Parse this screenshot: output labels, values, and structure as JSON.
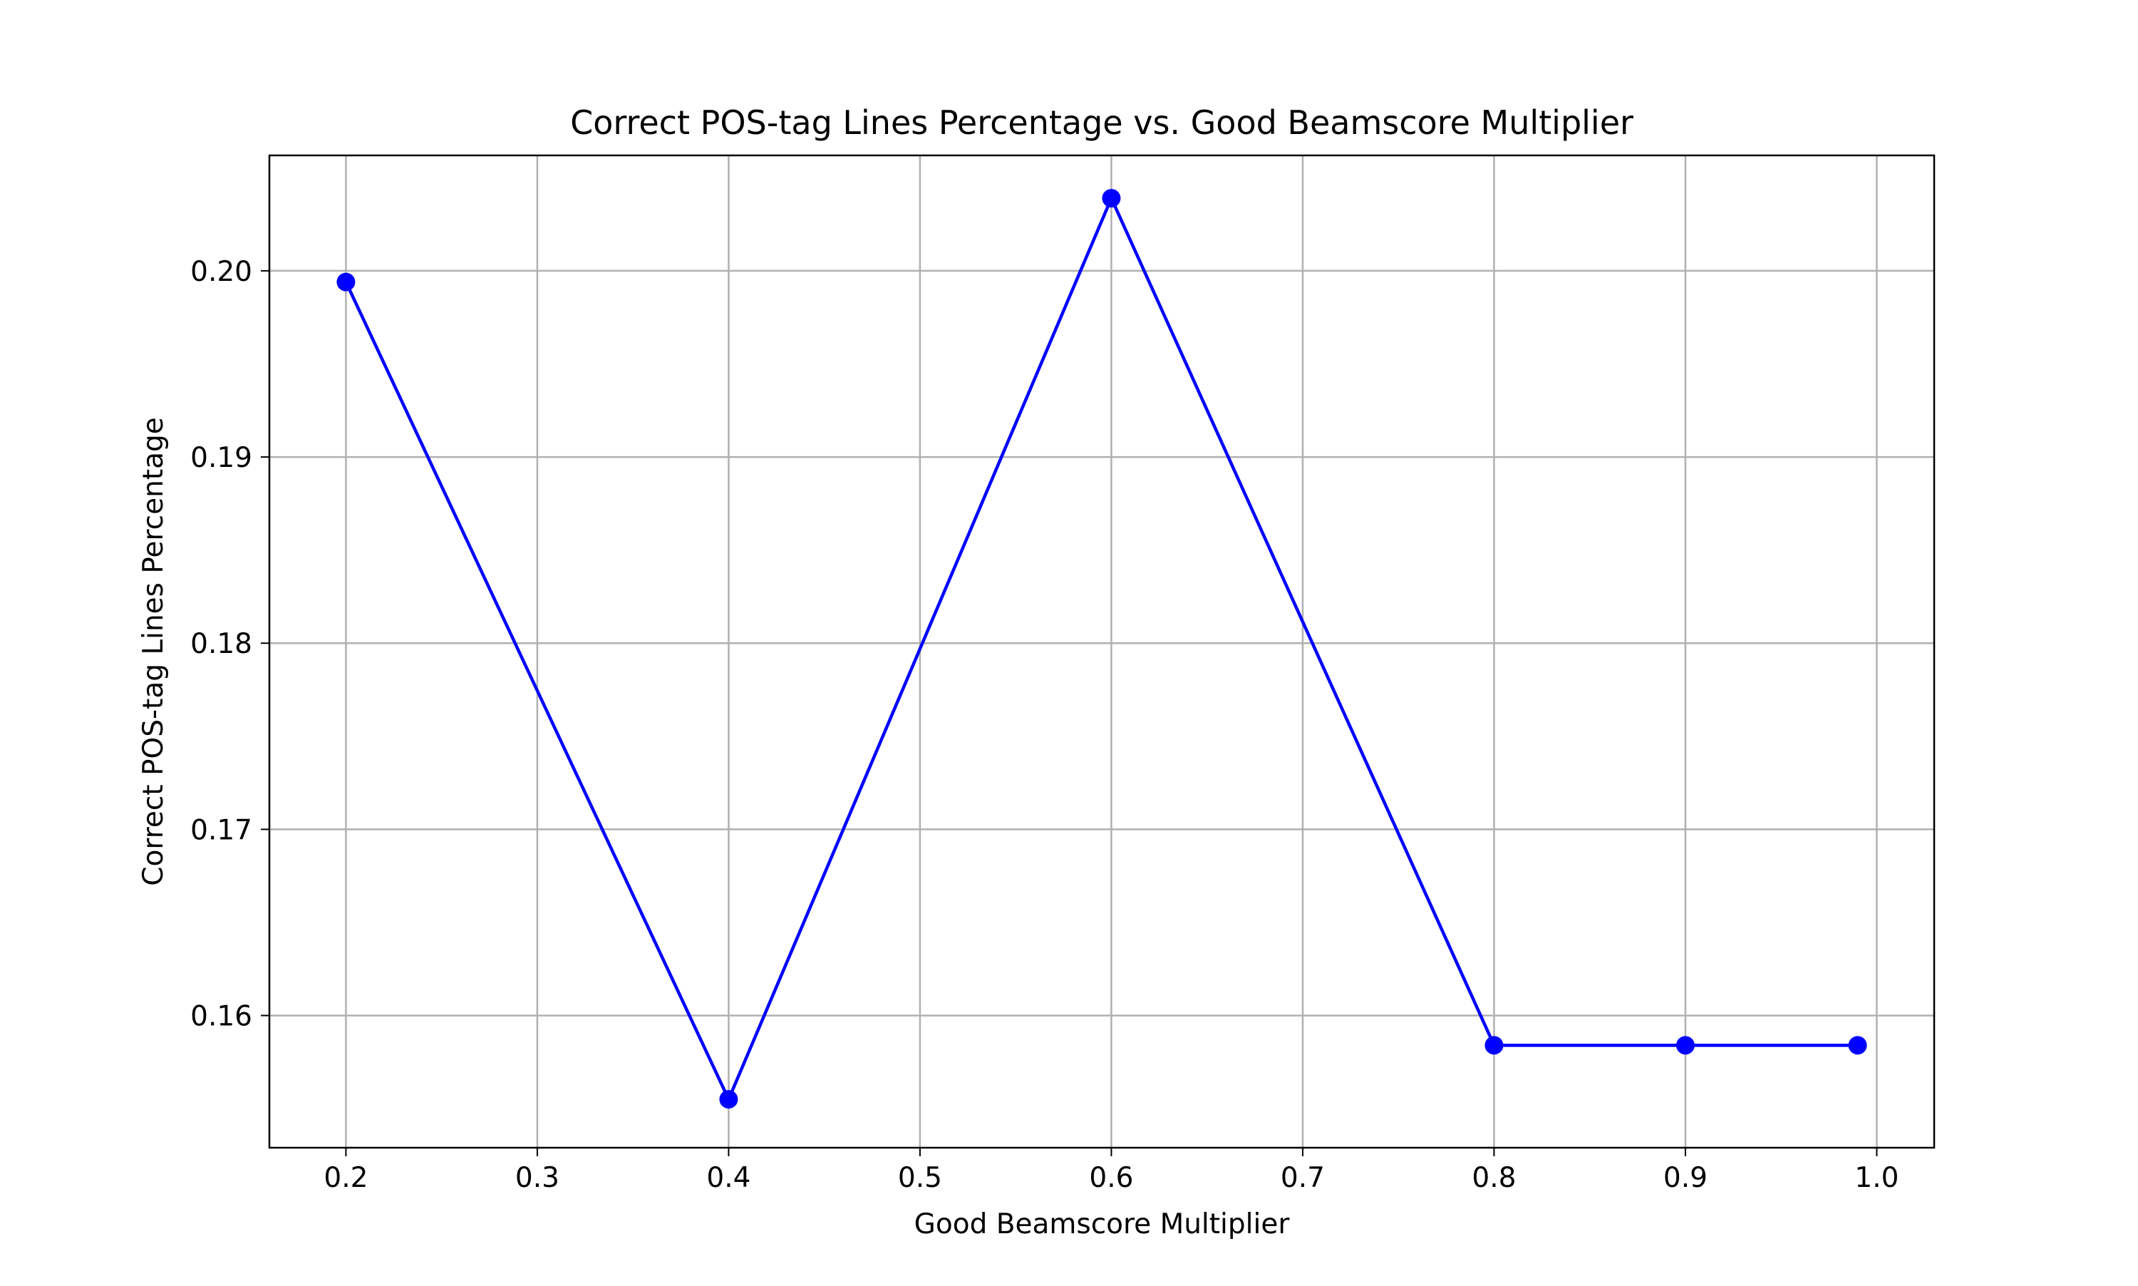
{
  "chart_data": {
    "type": "line",
    "title": "Correct POS-tag Lines Percentage vs. Good Beamscore Multiplier",
    "xlabel": "Good Beamscore Multiplier",
    "ylabel": "Correct POS-tag Lines Percentage",
    "x": [
      0.2,
      0.4,
      0.6,
      0.8,
      0.9,
      0.99
    ],
    "series": [
      {
        "values": [
          0.1994,
          0.1555,
          0.2039,
          0.1584,
          0.1584,
          0.1584
        ],
        "color": "#0000ff",
        "marker": "circle"
      }
    ],
    "xlim": [
      0.16,
      1.03
    ],
    "ylim": [
      0.1529,
      0.2062
    ],
    "xticks": [
      0.2,
      0.3,
      0.4,
      0.5,
      0.6,
      0.7,
      0.8,
      0.9,
      1.0
    ],
    "xtick_labels": [
      "0.2",
      "0.3",
      "0.4",
      "0.5",
      "0.6",
      "0.7",
      "0.8",
      "0.9",
      "1.0"
    ],
    "yticks": [
      0.16,
      0.17,
      0.18,
      0.19,
      0.2
    ],
    "ytick_labels": [
      "0.16",
      "0.17",
      "0.18",
      "0.19",
      "0.20"
    ],
    "grid": true,
    "grid_color": "#b0b0b0"
  }
}
